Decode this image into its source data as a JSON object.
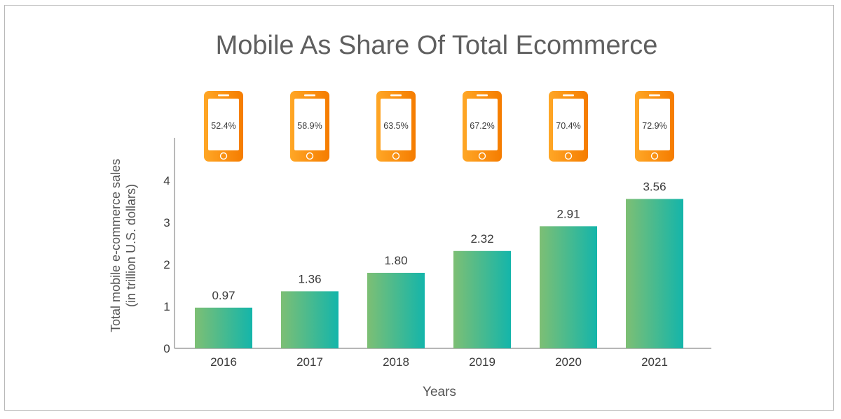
{
  "chart_data": {
    "type": "bar",
    "title": "Mobile As Share Of Total Ecommerce",
    "xlabel": "Years",
    "ylabel": [
      "Total mobile e-commerce sales",
      "(in trillion U.S. dollars)"
    ],
    "categories": [
      "2016",
      "2017",
      "2018",
      "2019",
      "2020",
      "2021"
    ],
    "values": [
      0.97,
      1.36,
      1.8,
      2.32,
      2.91,
      3.56
    ],
    "value_labels": [
      "0.97",
      "1.36",
      "1.80",
      "2.32",
      "2.91",
      "3.56"
    ],
    "mobile_share_labels": [
      "52.4%",
      "58.9%",
      "63.5%",
      "67.2%",
      "70.4%",
      "72.9%"
    ],
    "yticks": [
      0,
      1,
      2,
      3,
      4
    ],
    "ylim": [
      0,
      5
    ],
    "grid": false,
    "legend": "none",
    "colors": {
      "bar_start": "#7dbf74",
      "bar_end": "#14b5aa",
      "phone_start": "#ffa726",
      "phone_end": "#f57c00",
      "text": "#3a3a3a",
      "title": "#5f5f5f",
      "axis": "#8a8a8a"
    }
  }
}
